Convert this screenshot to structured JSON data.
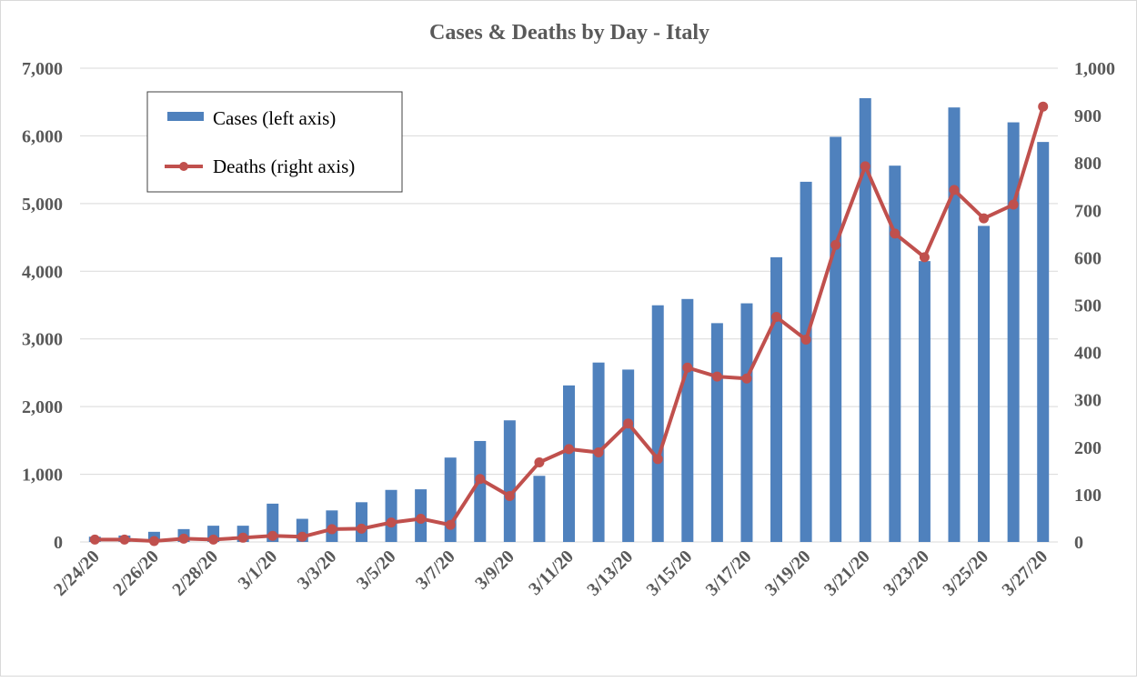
{
  "chart_data": {
    "type": "bar",
    "title": "Cases & Deaths by Day - Italy",
    "categories": [
      "2/24/20",
      "2/25/20",
      "2/26/20",
      "2/27/20",
      "2/28/20",
      "2/29/20",
      "3/1/20",
      "3/2/20",
      "3/3/20",
      "3/4/20",
      "3/5/20",
      "3/6/20",
      "3/7/20",
      "3/8/20",
      "3/9/20",
      "3/10/20",
      "3/11/20",
      "3/12/20",
      "3/13/20",
      "3/14/20",
      "3/15/20",
      "3/16/20",
      "3/17/20",
      "3/18/20",
      "3/19/20",
      "3/20/20",
      "3/21/20",
      "3/22/20",
      "3/23/20",
      "3/24/20",
      "3/25/20",
      "3/26/20",
      "3/27/20"
    ],
    "series": [
      {
        "name": "Cases (left axis)",
        "type": "bar",
        "axis": "left",
        "color": "#4F81BD",
        "values": [
          78,
          95,
          150,
          190,
          240,
          240,
          566,
          342,
          466,
          587,
          769,
          778,
          1247,
          1492,
          1797,
          977,
          2313,
          2651,
          2547,
          3497,
          3590,
          3233,
          3526,
          4207,
          5322,
          5986,
          6557,
          5560,
          4150,
          6420,
          4670,
          6200,
          5910
        ]
      },
      {
        "name": "Deaths (right axis)",
        "type": "line",
        "axis": "right",
        "color": "#C0504D",
        "values": [
          5,
          5,
          2,
          7,
          5,
          9,
          13,
          11,
          27,
          28,
          41,
          49,
          36,
          133,
          97,
          168,
          196,
          189,
          250,
          175,
          368,
          349,
          345,
          475,
          427,
          627,
          793,
          651,
          601,
          743,
          683,
          712,
          919
        ]
      }
    ],
    "left_axis": {
      "ylim": [
        0,
        7000
      ],
      "ticks": [
        "0",
        "1,000",
        "2,000",
        "3,000",
        "4,000",
        "5,000",
        "6,000",
        "7,000"
      ]
    },
    "right_axis": {
      "ylim": [
        0,
        1000
      ],
      "ticks": [
        "0",
        "100",
        "200",
        "300",
        "400",
        "500",
        "600",
        "700",
        "800",
        "900",
        "1,000"
      ]
    },
    "xlabel": "",
    "ylabel": "",
    "grid": true,
    "legend_position": "top-left",
    "x_tick_labels": [
      "2/24/20",
      "2/26/20",
      "2/28/20",
      "3/1/20",
      "3/3/20",
      "3/5/20",
      "3/7/20",
      "3/9/20",
      "3/11/20",
      "3/13/20",
      "3/15/20",
      "3/17/20",
      "3/19/20",
      "3/21/20",
      "3/23/20",
      "3/25/20",
      "3/27/20"
    ]
  }
}
